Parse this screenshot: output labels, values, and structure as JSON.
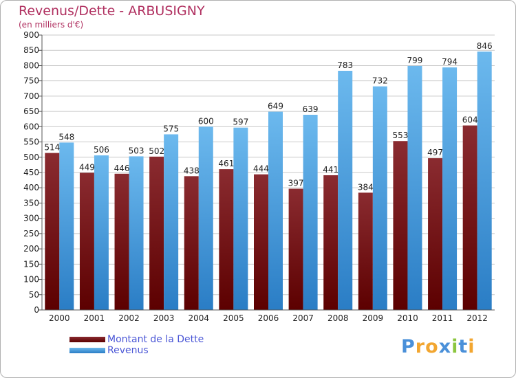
{
  "colors": {
    "background": "#ffffff",
    "grid": "#c8c8c8",
    "debt_top": "#8a2b30",
    "debt_bottom": "#5c0000",
    "revenue_top": "#6cb9ee",
    "revenue_bottom": "#2a7dc5",
    "title": "#b03060",
    "legend_text": "#4a56d6"
  },
  "chart_data": {
    "type": "bar",
    "title": "Revenus/Dette - ARBUSIGNY",
    "subtitle": "(en milliers d'€)",
    "xlabel": "",
    "ylabel": "",
    "ylim": [
      0,
      900
    ],
    "ytick_step": 50,
    "grid": true,
    "legend_position": "bottom-left",
    "categories": [
      "2000",
      "2001",
      "2002",
      "2003",
      "2004",
      "2005",
      "2006",
      "2007",
      "2008",
      "2009",
      "2010",
      "2011",
      "2012"
    ],
    "series": [
      {
        "name": "Montant de la Dette",
        "values": [
          514,
          449,
          446,
          502,
          438,
          461,
          444,
          397,
          441,
          384,
          553,
          497,
          604
        ]
      },
      {
        "name": "Revenus",
        "values": [
          548,
          506,
          503,
          575,
          600,
          597,
          649,
          639,
          783,
          732,
          799,
          794,
          846
        ]
      }
    ]
  },
  "brand": {
    "text": "Proxiti",
    "letters": [
      "P",
      "r",
      "o",
      "x",
      "i",
      "t",
      "i"
    ],
    "letter_colors": [
      "#4a90d9",
      "#f2a630",
      "#f2a630",
      "#4a90d9",
      "#8cc63f",
      "#4a90d9",
      "#f2a630"
    ]
  }
}
